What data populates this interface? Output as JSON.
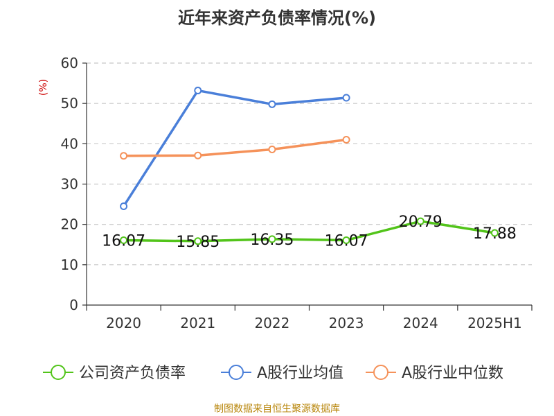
{
  "chart_data": {
    "type": "line",
    "title": "近年来资产负债率情况(%)",
    "ylabel": "(%)",
    "categories": [
      "2020",
      "2021",
      "2022",
      "2023",
      "2024",
      "2025H1"
    ],
    "ylim": [
      0,
      60
    ],
    "yticks": [
      0,
      10,
      20,
      30,
      40,
      50,
      60
    ],
    "grid": true,
    "legend_position": "bottom",
    "series": [
      {
        "name": "公司资产负债率",
        "color": "#52c41a",
        "values": [
          16.07,
          15.85,
          16.35,
          16.07,
          20.79,
          17.88
        ],
        "labels": [
          "16.07",
          "15.85",
          "16.35",
          "16.07",
          "20.79",
          "17.88"
        ]
      },
      {
        "name": "A股行业均值",
        "color": "#4a7fd9",
        "values": [
          24.5,
          53.2,
          49.8,
          51.4,
          null,
          null
        ]
      },
      {
        "name": "A股行业中位数",
        "color": "#f5925a",
        "values": [
          37.0,
          37.1,
          38.6,
          41.0,
          null,
          null
        ]
      }
    ],
    "source": "制图数据来自恒生聚源数据库"
  }
}
